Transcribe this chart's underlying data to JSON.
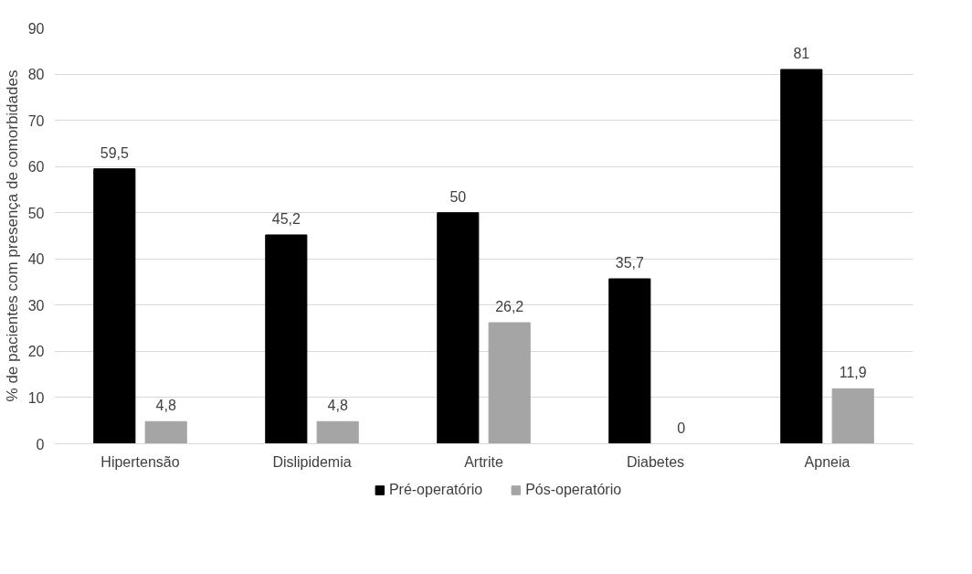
{
  "chart_data": {
    "type": "bar",
    "ylabel": "% de pacientes com presença de comorbidades",
    "categories": [
      "Hipertensão",
      "Dislipidemia",
      "Artrite",
      "Diabetes",
      "Apneia"
    ],
    "series": [
      {
        "name": "Pré-operatório",
        "color": "#000000",
        "values": [
          59.5,
          45.2,
          50,
          35.7,
          81
        ],
        "value_labels": [
          "59,5",
          "45,2",
          "50",
          "35,7",
          "81"
        ]
      },
      {
        "name": "Pós-operatório",
        "color": "#a5a5a5",
        "values": [
          4.8,
          4.8,
          26.2,
          0,
          11.9
        ],
        "value_labels": [
          "4,8",
          "4,8",
          "26,2",
          "0",
          "11,9"
        ]
      }
    ],
    "ylim": [
      0,
      90
    ],
    "yticks": [
      0,
      10,
      20,
      30,
      40,
      50,
      60,
      70,
      80,
      90
    ],
    "grid": "y",
    "legend": "bottom"
  }
}
